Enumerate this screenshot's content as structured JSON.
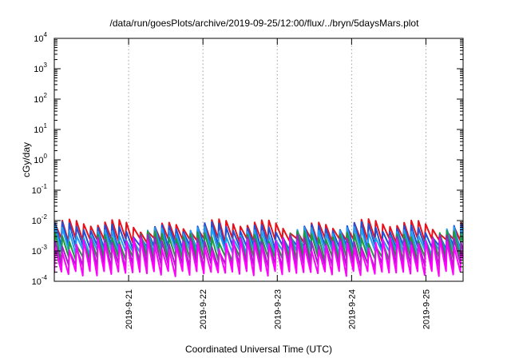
{
  "chart_data": {
    "type": "line",
    "title": "/data/run/goesPlots/archive/2019-09-25/12:00/flux/../bryn/5daysMars.plot",
    "xlabel": "Coordinated Universal Time (UTC)",
    "ylabel": "cGy/day",
    "yscale": "log",
    "ylim": [
      0.0001,
      10000
    ],
    "y_ticks": [
      {
        "mant": "10",
        "exp": "4"
      },
      {
        "mant": "10",
        "exp": "3"
      },
      {
        "mant": "10",
        "exp": "2"
      },
      {
        "mant": "10",
        "exp": "1"
      },
      {
        "mant": "10",
        "exp": "0"
      },
      {
        "mant": "10",
        "exp": "-1"
      },
      {
        "mant": "10",
        "exp": "-2"
      },
      {
        "mant": "10",
        "exp": "-3"
      },
      {
        "mant": "10",
        "exp": "-4"
      }
    ],
    "xlim": [
      "2019-09-20 00:00",
      "2019-09-25 12:00"
    ],
    "x_ticks": [
      "2019-9-21",
      "2019-9-22",
      "2019-9-23",
      "2019-9-24",
      "2019-9-25"
    ],
    "grid": true,
    "legend": "none",
    "sawtooth_period_hours": 2.3,
    "series": [
      {
        "color": "#e8101a",
        "peak_base": 0.0075,
        "trough_base": 0.0022
      },
      {
        "color": "#1e50d8",
        "peak_base": 0.0058,
        "trough_base": 0.0013
      },
      {
        "color": "#1ea0f0",
        "peak_base": 0.0042,
        "trough_base": 0.0009
      },
      {
        "color": "#1e9a3c",
        "peak_base": 0.003,
        "trough_base": 0.00055
      },
      {
        "color": "#a020c0",
        "peak_base": 0.0022,
        "trough_base": 0.00032
      },
      {
        "color": "#ff00ff",
        "peak_base": 0.0018,
        "trough_base": 0.00018
      }
    ]
  }
}
